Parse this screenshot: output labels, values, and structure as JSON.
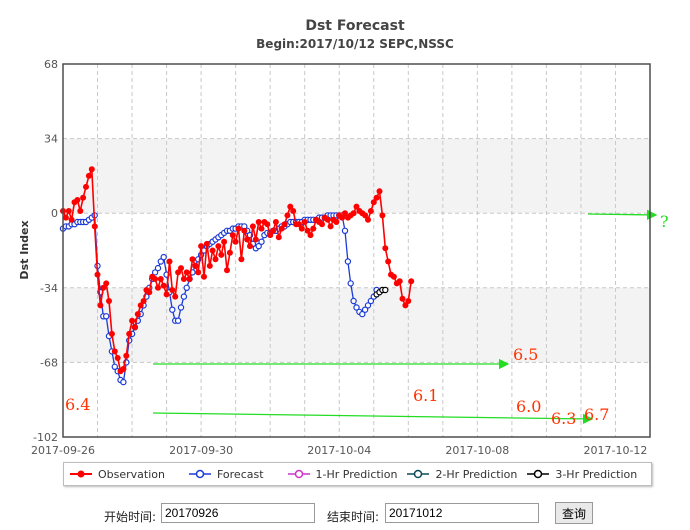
{
  "chart_data": {
    "type": "line",
    "title": "Dst Forecast",
    "subtitle": "Begin:2017/10/12   SEPC,NSSC",
    "ylabel": "Dst Index",
    "xlabel": "",
    "ylim": [
      -102,
      68
    ],
    "yticks": [
      "68",
      "34",
      "0",
      "-34",
      "-68",
      "-102"
    ],
    "xticks": [
      "2017-09-26",
      "2017-09-30",
      "2017-10-04",
      "2017-10-08",
      "2017-10-12"
    ],
    "x_start": "2017-09-26",
    "x_end": "2017-10-13",
    "grid": true,
    "legend_position": "bottom",
    "series": [
      {
        "name": "Observation",
        "color": "#ff0000",
        "marker": "filled-circle",
        "step_hours": 2,
        "values": [
          1,
          -2,
          1,
          -3,
          5,
          6,
          1,
          7,
          12,
          17,
          20,
          -6,
          -28,
          -42,
          -34,
          -32,
          -40,
          -55,
          -63,
          -66,
          -72,
          -71,
          -65,
          -55,
          -49,
          -52,
          -46,
          -42,
          -40,
          -35,
          -36,
          -29,
          -30,
          -34,
          -30,
          -33,
          -37,
          -22,
          -35,
          -38,
          -27,
          -25,
          -30,
          -27,
          -30,
          -21,
          -24,
          -27,
          -15,
          -29,
          -14,
          -24,
          -17,
          -21,
          -15,
          -19,
          -13,
          -26,
          -18,
          -10,
          -13,
          -7,
          -21,
          -8,
          -12,
          -15,
          -6,
          -12,
          -4,
          -7,
          -4,
          -5,
          -10,
          -8,
          -4,
          -11,
          -7,
          -5,
          -1,
          3,
          1,
          -5,
          -5,
          -7,
          -4,
          -8,
          -10,
          -7,
          -3,
          -4,
          -5,
          -2,
          -3,
          -6,
          -3,
          -4,
          -1,
          -2,
          0,
          -2,
          -1,
          0,
          3,
          1,
          0,
          -1,
          -3,
          1,
          5,
          7,
          10,
          -1,
          -16,
          -22,
          -28,
          -29,
          -32,
          -31,
          -39,
          -42,
          -40,
          -31
        ]
      },
      {
        "name": "Forecast",
        "color": "#1c3bd6",
        "marker": "open-circle",
        "step_hours": 2,
        "values": [
          -7,
          -6,
          -6,
          -5,
          -5,
          -4,
          -4,
          -4,
          -4,
          -3,
          -2,
          -1,
          -24,
          -36,
          -47,
          -47,
          -56,
          -63,
          -70,
          -72,
          -76,
          -77,
          -68,
          -58,
          -55,
          -52,
          -49,
          -46,
          -42,
          -38,
          -34,
          -30,
          -27,
          -25,
          -22,
          -20,
          -28,
          -36,
          -44,
          -49,
          -49,
          -43,
          -38,
          -34,
          -30,
          -27,
          -24,
          -21,
          -19,
          -17,
          -15,
          -14,
          -13,
          -12,
          -11,
          -10,
          -9,
          -8,
          -8,
          -7,
          -7,
          -6,
          -6,
          -6,
          -8,
          -10,
          -14,
          -16,
          -15,
          -13,
          -10,
          -9,
          -9,
          -8,
          -8,
          -7,
          -6,
          -6,
          -5,
          -4,
          -4,
          -4,
          -4,
          -4,
          -3,
          -3,
          -3,
          -3,
          -3,
          -2,
          -2,
          -2,
          -1,
          -1,
          -1,
          -1,
          -1,
          -1,
          -8,
          -22,
          -32,
          -40,
          -43,
          -45,
          -46,
          -44,
          -42,
          -40,
          -38,
          -35
        ]
      },
      {
        "name": "1-Hr Prediction",
        "color": "#cc33cc",
        "marker": "open-circle",
        "values": []
      },
      {
        "name": "2-Hr Prediction",
        "color": "#0b4b5b",
        "marker": "open-circle",
        "values": []
      },
      {
        "name": "3-Hr Prediction",
        "color": "#000000",
        "marker": "open-circle",
        "values": [
          -37,
          -36,
          -35,
          -35
        ]
      }
    ],
    "annotations": [
      {
        "text": "6.4",
        "color": "#ff3300"
      },
      {
        "text": "6.5",
        "color": "#ff3300"
      },
      {
        "text": "6.1",
        "color": "#ff3300"
      },
      {
        "text": "6.0",
        "color": "#ff3300"
      },
      {
        "text": "6.3",
        "color": "#ff3300"
      },
      {
        "text": "6.7",
        "color": "#ff3300"
      },
      {
        "text": "?",
        "color": "#22dd22"
      }
    ]
  },
  "controls": {
    "start_label": "开始时间:",
    "start_value": "20170926",
    "end_label": "结束时间:",
    "end_value": "20171012",
    "query_label": "查询"
  }
}
